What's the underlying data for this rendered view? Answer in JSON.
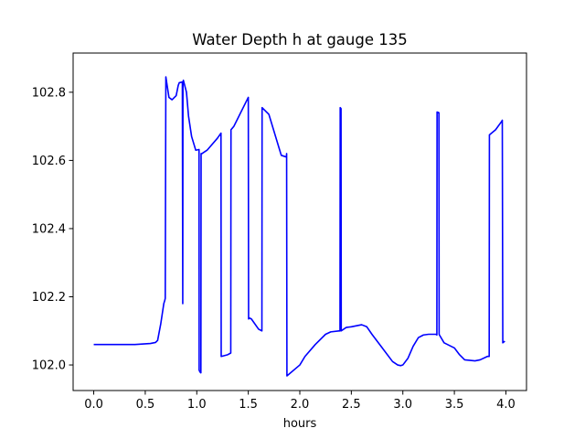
{
  "chart_data": {
    "type": "line",
    "title": "Water Depth h at gauge 135",
    "xlabel": "hours",
    "ylabel": "",
    "xlim": [
      -0.2,
      4.2
    ],
    "ylim": [
      101.925,
      102.915
    ],
    "xticks": [
      0.0,
      0.5,
      1.0,
      1.5,
      2.0,
      2.5,
      3.0,
      3.5,
      4.0
    ],
    "xtick_labels": [
      "0.0",
      "0.5",
      "1.0",
      "1.5",
      "2.0",
      "2.5",
      "3.0",
      "3.5",
      "4.0"
    ],
    "yticks": [
      102.0,
      102.2,
      102.4,
      102.6,
      102.8
    ],
    "ytick_labels": [
      "102.0",
      "102.2",
      "102.4",
      "102.6",
      "102.8"
    ],
    "grid": false,
    "legend": "none",
    "series": [
      {
        "color": "#0000ff",
        "x": [
          0.0,
          0.2,
          0.4,
          0.55,
          0.6,
          0.62,
          0.65,
          0.68,
          0.69,
          0.694,
          0.7,
          0.73,
          0.76,
          0.8,
          0.82,
          0.83,
          0.86,
          0.864,
          0.866,
          0.87,
          0.9,
          0.92,
          0.95,
          0.99,
          1.022,
          1.023,
          1.03,
          1.04,
          1.042,
          1.05,
          1.1,
          1.2,
          1.235,
          1.237,
          1.3,
          1.33,
          1.332,
          1.36,
          1.5,
          1.503,
          1.51,
          1.53,
          1.6,
          1.632,
          1.634,
          1.7,
          1.8,
          1.82,
          1.87,
          1.872,
          1.875,
          2.0,
          2.05,
          2.15,
          2.25,
          2.3,
          2.38,
          2.39,
          2.392,
          2.4,
          2.402,
          2.45,
          2.5,
          2.55,
          2.6,
          2.65,
          2.7,
          2.8,
          2.9,
          2.95,
          2.98,
          3.0,
          3.05,
          3.1,
          3.15,
          3.2,
          3.25,
          3.32,
          3.33,
          3.332,
          3.35,
          3.352,
          3.355,
          3.4,
          3.5,
          3.55,
          3.6,
          3.7,
          3.75,
          3.82,
          3.838,
          3.84,
          3.9,
          3.96,
          3.965,
          3.97,
          3.99
        ],
        "y": [
          102.06,
          102.06,
          102.06,
          102.063,
          102.066,
          102.072,
          102.12,
          102.18,
          102.19,
          102.195,
          102.845,
          102.785,
          102.778,
          102.79,
          102.82,
          102.828,
          102.83,
          102.18,
          102.83,
          102.835,
          102.8,
          102.73,
          102.67,
          102.63,
          102.632,
          101.985,
          101.98,
          101.977,
          102.62,
          102.62,
          102.63,
          102.665,
          102.68,
          102.025,
          102.03,
          102.035,
          102.69,
          102.7,
          102.785,
          102.135,
          102.138,
          102.135,
          102.105,
          102.1,
          102.755,
          102.735,
          102.635,
          102.615,
          102.61,
          102.62,
          101.968,
          102.0,
          102.025,
          102.06,
          102.09,
          102.097,
          102.1,
          102.1,
          102.755,
          102.752,
          102.1,
          102.11,
          102.112,
          102.115,
          102.118,
          102.112,
          102.09,
          102.05,
          102.01,
          102.0,
          101.998,
          102.0,
          102.02,
          102.055,
          102.08,
          102.088,
          102.09,
          102.09,
          102.088,
          102.742,
          102.74,
          102.09,
          102.088,
          102.065,
          102.05,
          102.03,
          102.015,
          102.012,
          102.015,
          102.025,
          102.025,
          102.675,
          102.69,
          102.715,
          102.718,
          102.065,
          102.07
        ]
      }
    ]
  }
}
